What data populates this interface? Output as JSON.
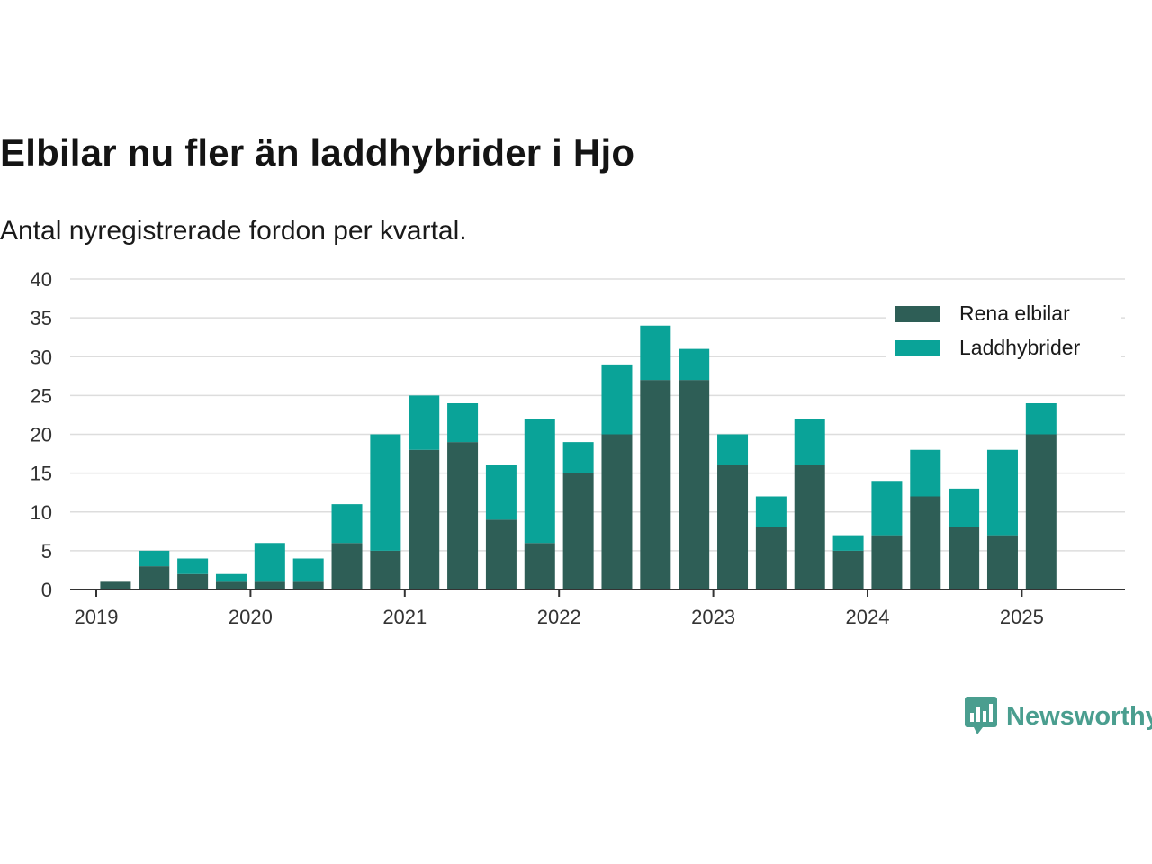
{
  "title": "Elbilar nu fler än laddhybrider i Hjo",
  "subtitle": "Antal nyregistrerade fordon per kvartal.",
  "brand": {
    "name": "Newsworthy",
    "icon": "newsworthy-logo-icon"
  },
  "colors": {
    "series1": "#2e5e56",
    "series2": "#0aa398",
    "grid": "#dddddd",
    "axis": "#333333",
    "brand": "#4a9e8f"
  },
  "chart_data": {
    "type": "bar",
    "stacked": true,
    "x_tick_labels": [
      "2019",
      "2020",
      "2021",
      "2022",
      "2023",
      "2024",
      "2025"
    ],
    "x": [
      "2019 Q1",
      "2019 Q2",
      "2019 Q3",
      "2019 Q4",
      "2020 Q1",
      "2020 Q2",
      "2020 Q3",
      "2020 Q4",
      "2021 Q1",
      "2021 Q2",
      "2021 Q3",
      "2021 Q4",
      "2022 Q1",
      "2022 Q2",
      "2022 Q3",
      "2022 Q4",
      "2023 Q1",
      "2023 Q2",
      "2023 Q3",
      "2023 Q4",
      "2024 Q1",
      "2024 Q2",
      "2024 Q3",
      "2024 Q4",
      "2025 Q1",
      "2025 Q2"
    ],
    "series": [
      {
        "name": "Rena elbilar",
        "values": [
          1,
          3,
          2,
          1,
          1,
          1,
          6,
          5,
          18,
          19,
          9,
          6,
          15,
          20,
          27,
          27,
          16,
          8,
          16,
          5,
          7,
          12,
          8,
          7,
          20,
          0
        ]
      },
      {
        "name": "Laddhybrider",
        "values": [
          0,
          2,
          2,
          1,
          5,
          3,
          5,
          15,
          7,
          5,
          7,
          16,
          4,
          9,
          7,
          4,
          4,
          4,
          6,
          2,
          7,
          6,
          5,
          11,
          4,
          0
        ]
      }
    ],
    "yticks": [
      0,
      5,
      10,
      15,
      20,
      25,
      30,
      35,
      40
    ],
    "ylim": [
      0,
      40
    ],
    "grid": true,
    "legend_position": "top-right"
  }
}
